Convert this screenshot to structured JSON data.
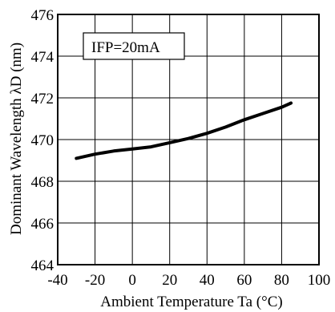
{
  "chart_data": {
    "type": "line",
    "title": "",
    "xlabel": "Ambient Temperature Ta (°C)",
    "ylabel": "Dominant Wavelength λD (nm)",
    "xlim": [
      -40,
      100
    ],
    "ylim": [
      464,
      476
    ],
    "x_ticks": [
      -40,
      -20,
      0,
      20,
      40,
      60,
      80,
      100
    ],
    "y_ticks": [
      464,
      466,
      468,
      470,
      472,
      474,
      476
    ],
    "grid": true,
    "annotation": "IFP=20mA",
    "series": [
      {
        "color": "#000000",
        "x": [
          -30,
          -20,
          -10,
          0,
          10,
          20,
          30,
          40,
          50,
          60,
          70,
          80,
          85
        ],
        "y": [
          469.1,
          469.3,
          469.45,
          469.55,
          469.65,
          469.85,
          470.05,
          470.3,
          470.6,
          470.95,
          471.25,
          471.55,
          471.75
        ]
      }
    ]
  }
}
